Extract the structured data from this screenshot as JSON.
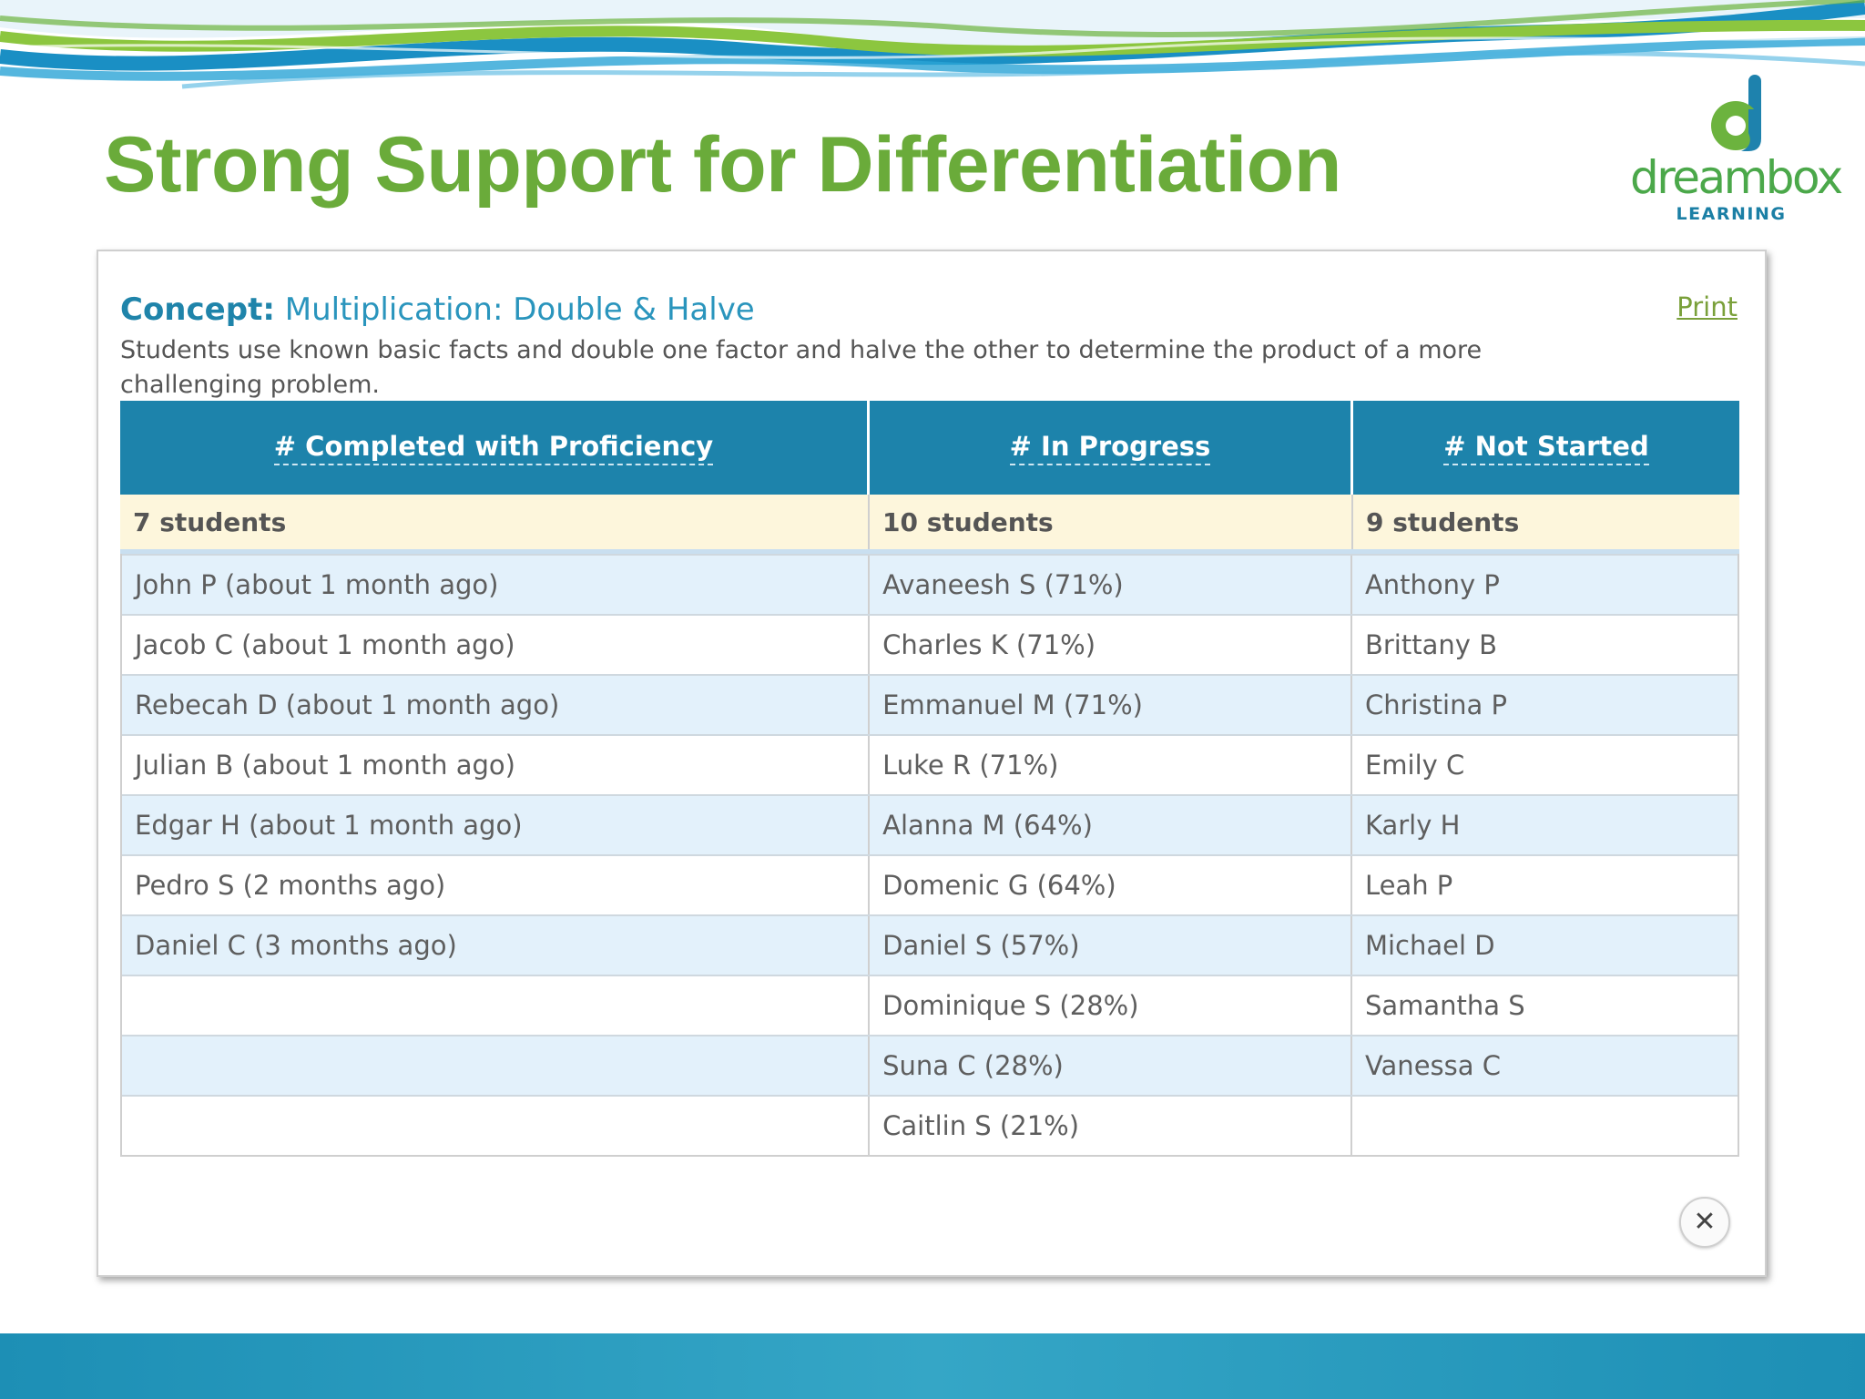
{
  "slide": {
    "title": "Strong Support for Differentiation"
  },
  "logo": {
    "wordmark": "dreambox",
    "tagline": "LEARNING"
  },
  "colors": {
    "title_green": "#6aab3a",
    "header_blue": "#1d83ab",
    "count_row_bg": "#fdf6dc",
    "row_alt_bg": "#e3f1fb",
    "footer_blue": "#2a9cc0"
  },
  "concept": {
    "label": "Concept:",
    "name": "Multiplication: Double & Halve",
    "description": "Students use known basic facts and double one factor and halve the other to determine the product of a more challenging problem.",
    "print_label": "Print"
  },
  "table": {
    "headers": [
      "# Completed with Proficiency",
      "# In Progress",
      "# Not Started"
    ],
    "counts": [
      "7 students",
      "10 students",
      "9 students"
    ],
    "rows": [
      [
        "John  P  (about 1 month ago)",
        "Avaneesh S (71%)",
        "Anthony P"
      ],
      [
        "Jacob C (about 1 month ago)",
        "Charles K (71%)",
        "Brittany B"
      ],
      [
        "Rebecah D  (about 1 month ago)",
        "Emmanuel M (71%)",
        "Christina P"
      ],
      [
        "Julian B (about 1 month ago)",
        "Luke R (71%)",
        "Emily C"
      ],
      [
        "Edgar H (about 1 month ago)",
        "Alanna M (64%)",
        "Karly H"
      ],
      [
        "Pedro S  (2 months ago)",
        "Domenic G (64%)",
        "Leah P"
      ],
      [
        "Daniel C  (3 months ago)",
        "Daniel S (57%)",
        "Michael D"
      ],
      [
        "",
        "Dominique S (28%)",
        "Samantha S"
      ],
      [
        "",
        "Suna C (28%)",
        "Vanessa C"
      ],
      [
        "",
        "Caitlin S (21%)",
        ""
      ]
    ]
  },
  "close_icon": "close-icon"
}
